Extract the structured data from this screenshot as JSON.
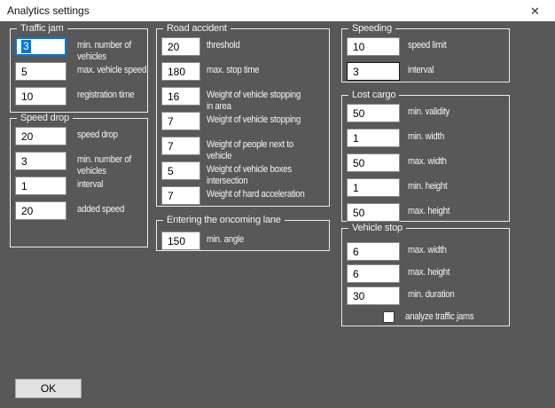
{
  "window": {
    "title": "Analytics settings",
    "close_glyph": "✕"
  },
  "ok_button": {
    "label": "OK"
  },
  "colors": {
    "body_bg": "#585858",
    "titlebar_bg": "#ffffff",
    "group_border": "#ececec",
    "text_light": "#f5f5f5",
    "input_border": "#8a8a8a",
    "input_hover_border": "#161616",
    "focus_border": "#0078d7",
    "selection_bg": "#0078d7",
    "button_bg": "#e1e1e1",
    "button_border": "#a9a9a9"
  },
  "groups": {
    "traffic_jam": {
      "title": "Traffic jam",
      "fields": [
        {
          "value": "3",
          "label": "min. number of\nvehicles",
          "state": "focused-selected"
        },
        {
          "value": "5",
          "label": "max. vehicle speed",
          "state": "normal"
        },
        {
          "value": "10",
          "label": "registration time",
          "state": "normal"
        }
      ]
    },
    "speed_drop": {
      "title": "Speed drop",
      "fields": [
        {
          "value": "20",
          "label": "speed drop",
          "state": "normal"
        },
        {
          "value": "3",
          "label": "min. number of\nvehicles",
          "state": "normal"
        },
        {
          "value": "1",
          "label": "interval",
          "state": "normal"
        },
        {
          "value": "20",
          "label": "added speed",
          "state": "normal"
        }
      ]
    },
    "road_accident": {
      "title": "Road accident",
      "fields": [
        {
          "value": "20",
          "label": "threshold",
          "state": "normal"
        },
        {
          "value": "180",
          "label": "max. stop time",
          "state": "normal"
        },
        {
          "value": "16",
          "label": "Weight of vehicle stopping\nin area",
          "state": "normal"
        },
        {
          "value": "7",
          "label": "Weight of vehicle stopping",
          "state": "normal"
        },
        {
          "value": "7",
          "label": "Weight of people next to\nvehicle",
          "state": "normal"
        },
        {
          "value": "5",
          "label": "Weight of vehicle boxes\nintersection",
          "state": "normal"
        },
        {
          "value": "7",
          "label": "Weight of hard acceleration",
          "state": "normal"
        }
      ]
    },
    "oncoming_lane": {
      "title": "Entering the oncoming lane",
      "fields": [
        {
          "value": "150",
          "label": "min. angle",
          "state": "normal"
        }
      ]
    },
    "speeding": {
      "title": "Speeding",
      "fields": [
        {
          "value": "10",
          "label": "speed limit",
          "state": "normal"
        },
        {
          "value": "3",
          "label": "interval",
          "state": "hover"
        }
      ]
    },
    "lost_cargo": {
      "title": "Lost cargo",
      "fields": [
        {
          "value": "50",
          "label": "min. validity",
          "state": "normal"
        },
        {
          "value": "1",
          "label": "min. width",
          "state": "normal"
        },
        {
          "value": "50",
          "label": "max. width",
          "state": "normal"
        },
        {
          "value": "1",
          "label": "min. height",
          "state": "normal"
        },
        {
          "value": "50",
          "label": "max. height",
          "state": "normal"
        }
      ]
    },
    "vehicle_stop": {
      "title": "Vehicle stop",
      "fields": [
        {
          "value": "6",
          "label": "max. width",
          "state": "normal"
        },
        {
          "value": "6",
          "label": "max. height",
          "state": "normal"
        },
        {
          "value": "30",
          "label": "min. duration",
          "state": "normal"
        }
      ],
      "checkbox": {
        "label": "analyze traffic jams",
        "checked": false
      }
    }
  }
}
